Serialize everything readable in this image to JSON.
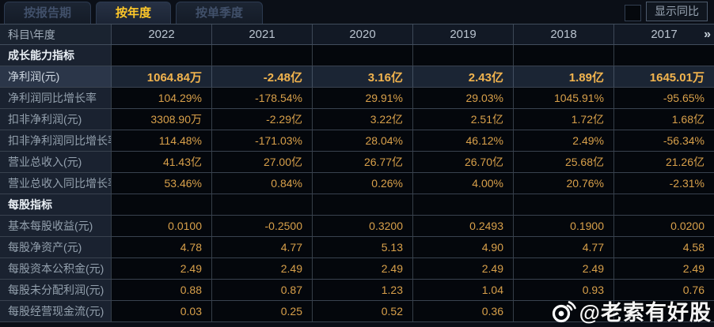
{
  "tabs": [
    {
      "label": "按报告期",
      "active": false
    },
    {
      "label": "按年度",
      "active": true
    },
    {
      "label": "按单季度",
      "active": false
    }
  ],
  "controls": {
    "show_yoy_label": "显示同比",
    "show_yoy_checked": false
  },
  "table": {
    "corner_label": "科目\\年度",
    "years": [
      "2022",
      "2021",
      "2020",
      "2019",
      "2018",
      "2017"
    ],
    "more_years_icon": "»",
    "rows": [
      {
        "type": "section",
        "label": "成长能力指标",
        "values": [
          "",
          "",
          "",
          "",
          "",
          ""
        ]
      },
      {
        "type": "highlight",
        "label": "净利润(元)",
        "values": [
          "1064.84万",
          "-2.48亿",
          "3.16亿",
          "2.43亿",
          "1.89亿",
          "1645.01万"
        ]
      },
      {
        "type": "data",
        "label": "净利润同比增长率",
        "values": [
          "104.29%",
          "-178.54%",
          "29.91%",
          "29.03%",
          "1045.91%",
          "-95.65%"
        ]
      },
      {
        "type": "data",
        "label": "扣非净利润(元)",
        "values": [
          "3308.90万",
          "-2.29亿",
          "3.22亿",
          "2.51亿",
          "1.72亿",
          "1.68亿"
        ]
      },
      {
        "type": "data",
        "label": "扣非净利润同比增长率",
        "values": [
          "114.48%",
          "-171.03%",
          "28.04%",
          "46.12%",
          "2.49%",
          "-56.34%"
        ]
      },
      {
        "type": "data",
        "label": "营业总收入(元)",
        "values": [
          "41.43亿",
          "27.00亿",
          "26.77亿",
          "26.70亿",
          "25.68亿",
          "21.26亿"
        ]
      },
      {
        "type": "data",
        "label": "营业总收入同比增长率",
        "values": [
          "53.46%",
          "0.84%",
          "0.26%",
          "4.00%",
          "20.76%",
          "-2.31%"
        ]
      },
      {
        "type": "section",
        "label": "每股指标",
        "values": [
          "",
          "",
          "",
          "",
          "",
          ""
        ]
      },
      {
        "type": "data",
        "label": "基本每股收益(元)",
        "values": [
          "0.0100",
          "-0.2500",
          "0.3200",
          "0.2493",
          "0.1900",
          "0.0200"
        ]
      },
      {
        "type": "data",
        "label": "每股净资产(元)",
        "values": [
          "4.78",
          "4.77",
          "5.13",
          "4.90",
          "4.77",
          "4.58"
        ]
      },
      {
        "type": "data",
        "label": "每股资本公积金(元)",
        "values": [
          "2.49",
          "2.49",
          "2.49",
          "2.49",
          "2.49",
          "2.49"
        ]
      },
      {
        "type": "data",
        "label": "每股未分配利润(元)",
        "values": [
          "0.88",
          "0.87",
          "1.23",
          "1.04",
          "0.93",
          "0.76"
        ]
      },
      {
        "type": "data",
        "label": "每股经营现金流(元)",
        "values": [
          "0.03",
          "0.25",
          "0.52",
          "0.36",
          "",
          ""
        ]
      }
    ]
  },
  "watermark": {
    "text": "@老索有好股",
    "icon": "weibo-icon"
  },
  "colors": {
    "value_gold": "#d8a04a",
    "highlight_gold": "#f2b44e",
    "active_tab_text": "#ffc829",
    "section_text": "#e9eff5",
    "label_text": "#93a0ad",
    "watermark_white": "#ffffff"
  }
}
